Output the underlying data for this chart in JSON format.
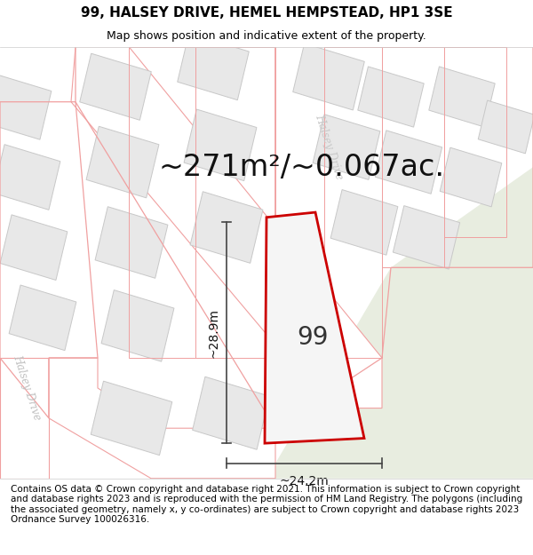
{
  "title": "99, HALSEY DRIVE, HEMEL HEMPSTEAD, HP1 3SE",
  "subtitle": "Map shows position and indicative extent of the property.",
  "area_text": "~271m²/~0.067ac.",
  "width_label": "~24.2m",
  "height_label": "~28.9m",
  "property_number": "99",
  "footer": "Contains OS data © Crown copyright and database right 2021. This information is subject to Crown copyright and database rights 2023 and is reproduced with the permission of HM Land Registry. The polygons (including the associated geometry, namely x, y co-ordinates) are subject to Crown copyright and database rights 2023 Ordnance Survey 100026316.",
  "bg_color": "#f7f7f7",
  "property_fill": "#f0f0f0",
  "property_outline": "#cc0000",
  "block_fill": "#e8e8e8",
  "block_outline_gray": "#c8c8c8",
  "road_line_pink": "#f0a0a0",
  "road_label_color": "#c0c0c0",
  "green_area": "#e8ede0",
  "title_fontsize": 11,
  "subtitle_fontsize": 9,
  "area_fontsize": 24,
  "dim_fontsize": 10,
  "footer_fontsize": 7.5
}
